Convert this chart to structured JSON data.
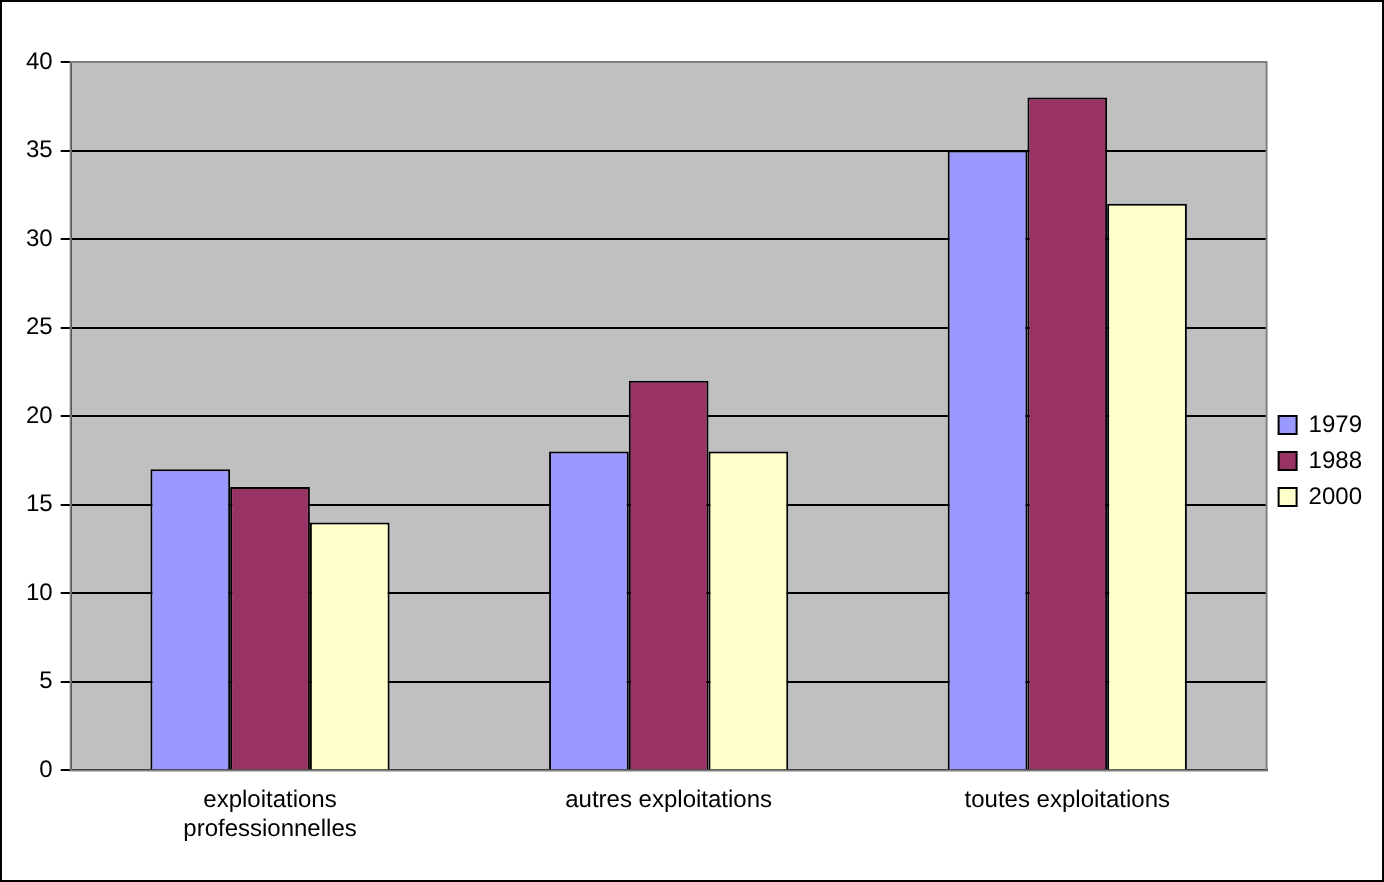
{
  "chart_data": {
    "type": "bar",
    "categories": [
      "exploitations professionnelles",
      "autres exploitations",
      "toutes exploitations"
    ],
    "series": [
      {
        "name": "1979",
        "color": "#9999ff",
        "values": [
          17,
          18,
          35
        ]
      },
      {
        "name": "1988",
        "color": "#993366",
        "values": [
          16,
          22,
          38
        ]
      },
      {
        "name": "2000",
        "color": "#ffffcc",
        "values": [
          14,
          18,
          32
        ]
      }
    ],
    "ylim": [
      0,
      40
    ],
    "yticks": [
      0,
      5,
      10,
      15,
      20,
      25,
      30,
      35,
      40
    ],
    "grid": "y",
    "legend": "right"
  }
}
